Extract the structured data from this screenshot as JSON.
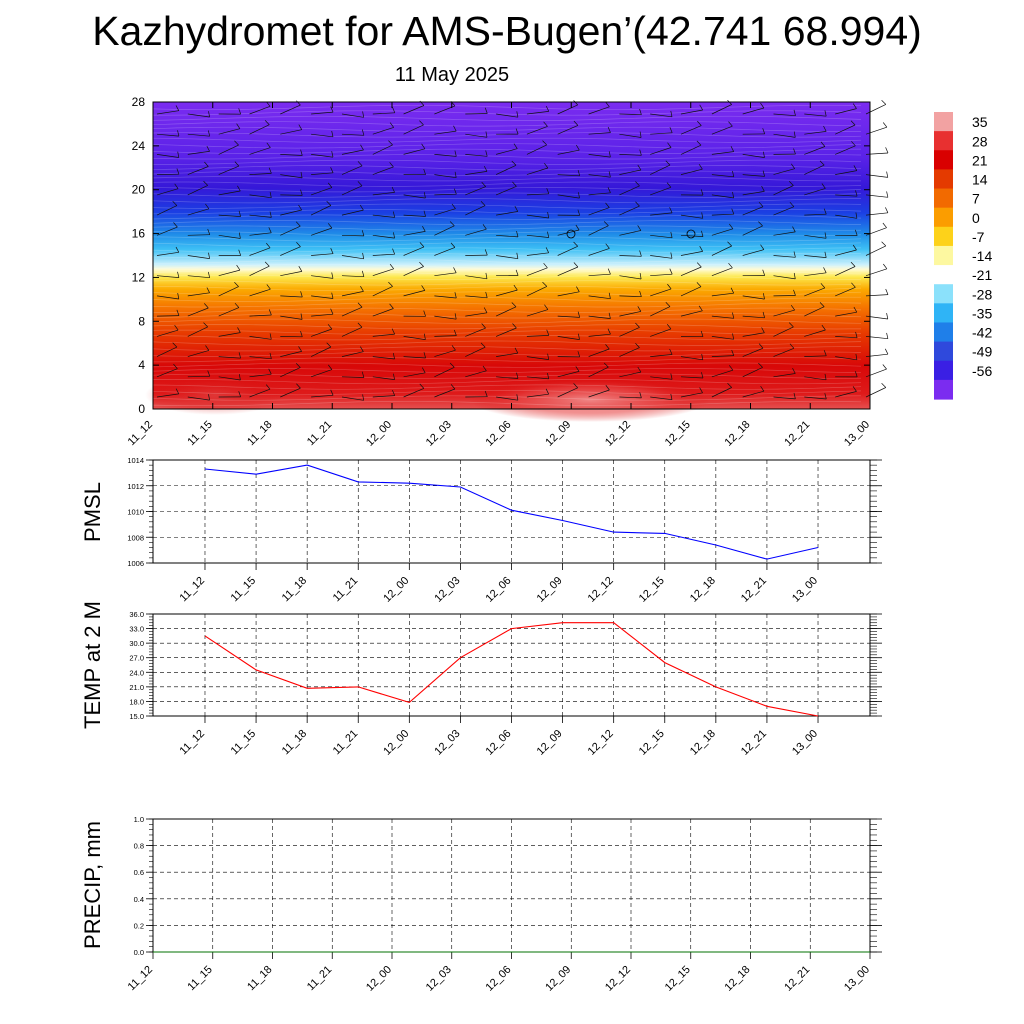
{
  "title": "Kazhydromet for AMS-Bugen’(42.741 68.994)",
  "subtitle": "11 May 2025",
  "chart_data": [
    {
      "type": "heatmap",
      "x_ticks": [
        "11_12",
        "11_15",
        "11_18",
        "11_21",
        "12_00",
        "12_03",
        "12_06",
        "12_09",
        "12_12",
        "12_15",
        "12_18",
        "12_21",
        "13_00"
      ],
      "y_ticks": [
        0,
        4,
        8,
        12,
        16,
        20,
        24,
        28
      ],
      "ylim": [
        0,
        28
      ],
      "colorbar_labels": [
        "35",
        "28",
        "21",
        "14",
        "7",
        "0",
        "-7",
        "-14",
        "-21",
        "-28",
        "-35",
        "-42",
        "-49",
        "-56"
      ],
      "colorbar_colors": [
        "#f2a2a2",
        "#e83030",
        "#d90000",
        "#e43a00",
        "#f26a00",
        "#fb9d00",
        "#fdd21a",
        "#fdf8a0",
        "#ffffff",
        "#8be1fb",
        "#2fb4f6",
        "#1f7fe9",
        "#2f49dc",
        "#3a1fe4",
        "#7b2cf0"
      ]
    },
    {
      "type": "line",
      "ylabel": "PMSL",
      "x": [
        "11_12",
        "11_15",
        "11_18",
        "11_21",
        "12_00",
        "12_03",
        "12_06",
        "12_09",
        "12_12",
        "12_15",
        "12_18",
        "12_21",
        "13_00"
      ],
      "series": [
        {
          "values": [
            1013.3,
            1012.9,
            1013.6,
            1012.3,
            1012.2,
            1011.9,
            1010.1,
            1009.3,
            1008.4,
            1008.3,
            1007.4,
            1006.3,
            1007.2
          ],
          "color": "#0000ff"
        }
      ],
      "ylim": [
        1006,
        1014
      ],
      "y_ticks": [
        "1006",
        "1008",
        "1010",
        "1012",
        "1014"
      ],
      "grid": true
    },
    {
      "type": "line",
      "ylabel": "TEMP at 2 M",
      "x": [
        "11_12",
        "11_15",
        "11_18",
        "11_21",
        "12_00",
        "12_03",
        "12_06",
        "12_09",
        "12_12",
        "12_15",
        "12_18",
        "12_21",
        "13_00"
      ],
      "series": [
        {
          "values": [
            31.5,
            24.5,
            20.7,
            21.0,
            17.8,
            27.0,
            33.0,
            34.2,
            34.2,
            26.0,
            21.0,
            17.0,
            15.0
          ],
          "color": "#ff0000"
        }
      ],
      "ylim": [
        15,
        36
      ],
      "y_ticks": [
        "15.0",
        "18.0",
        "21.0",
        "24.0",
        "27.0",
        "30.0",
        "33.0",
        "36.0"
      ],
      "grid": true
    },
    {
      "type": "line",
      "ylabel": "PRECIP, mm",
      "x": [
        "11_12",
        "11_15",
        "11_18",
        "11_21",
        "12_00",
        "12_03",
        "12_06",
        "12_09",
        "12_12",
        "12_15",
        "12_18",
        "12_21",
        "13_00"
      ],
      "series": [
        {
          "values": [
            0,
            0,
            0,
            0,
            0,
            0,
            0,
            0,
            0,
            0,
            0,
            0,
            0
          ],
          "color": "#007000"
        }
      ],
      "ylim": [
        0,
        1
      ],
      "y_ticks": [
        "0.0",
        "0.2",
        "0.4",
        "0.6",
        "0.8",
        "1.0"
      ],
      "grid": true
    }
  ]
}
